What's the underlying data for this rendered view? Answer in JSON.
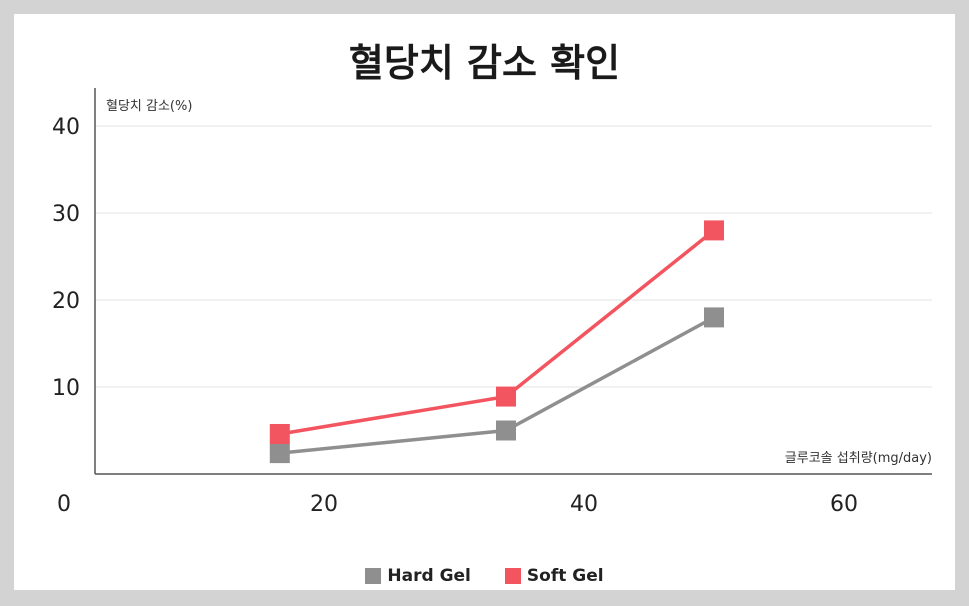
{
  "chart_data": {
    "type": "line",
    "title": "혈당치 감소 확인",
    "ylabel": "혈당치 감소(%)",
    "xlabel": "글루코솔 섭취량(mg/day)",
    "xlim": [
      0,
      70
    ],
    "ylim": [
      0,
      45
    ],
    "x_ticks": [
      "0",
      "20",
      "40",
      "60"
    ],
    "y_ticks": [
      "10",
      "20",
      "30",
      "40"
    ],
    "x": [
      16.6,
      34,
      50
    ],
    "series": [
      {
        "name": "Hard Gel",
        "values": [
          2.4,
          5,
          18
        ],
        "color": "#8f8f8f"
      },
      {
        "name": "Soft Gel",
        "values": [
          4.6,
          8.9,
          28
        ],
        "color": "#f25560"
      }
    ],
    "grid": true,
    "legend_position": "bottom-center"
  }
}
